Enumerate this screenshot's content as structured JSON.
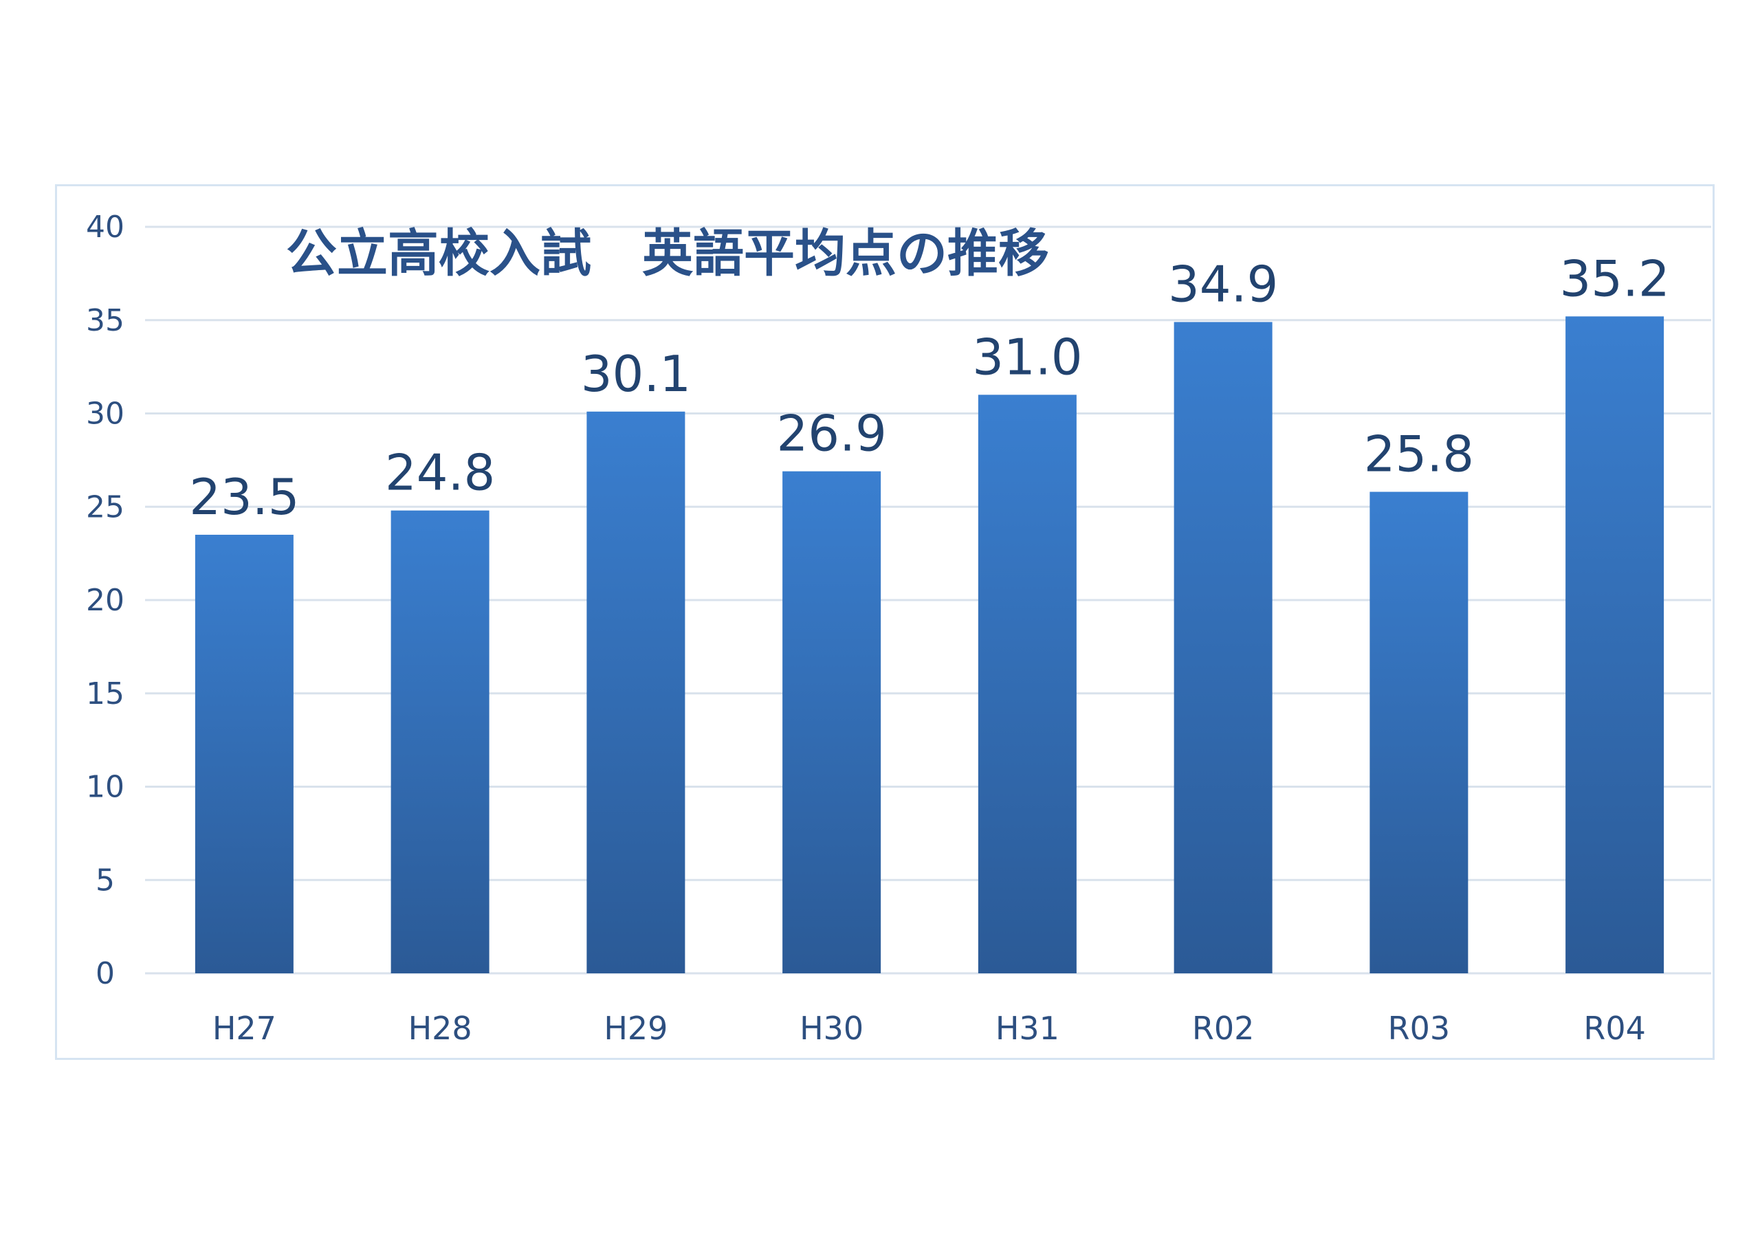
{
  "chart_data": {
    "type": "bar",
    "title": "公立高校入試　英語平均点の推移",
    "xlabel": "",
    "ylabel": "",
    "categories": [
      "H27",
      "H28",
      "H29",
      "H30",
      "H31",
      "R02",
      "R03",
      "R04"
    ],
    "values": [
      23.5,
      24.8,
      30.1,
      26.9,
      31.0,
      34.9,
      25.8,
      35.2
    ],
    "value_labels": [
      "23.5",
      "24.8",
      "30.1",
      "26.9",
      "31.0",
      "34.9",
      "25.8",
      "35.2"
    ],
    "ylim": [
      0,
      40
    ],
    "yticks": [
      "0",
      "5",
      "10",
      "15",
      "20",
      "25",
      "30",
      "35",
      "40"
    ],
    "grid": true,
    "legend": "none",
    "colors": {
      "bar_top": "#3a7fd0",
      "bar_bottom": "#2b5a96",
      "grid": "#d9e2ec",
      "frame": "#d6e4f2",
      "text": "#2d4f80",
      "title": "#2a5189"
    }
  }
}
